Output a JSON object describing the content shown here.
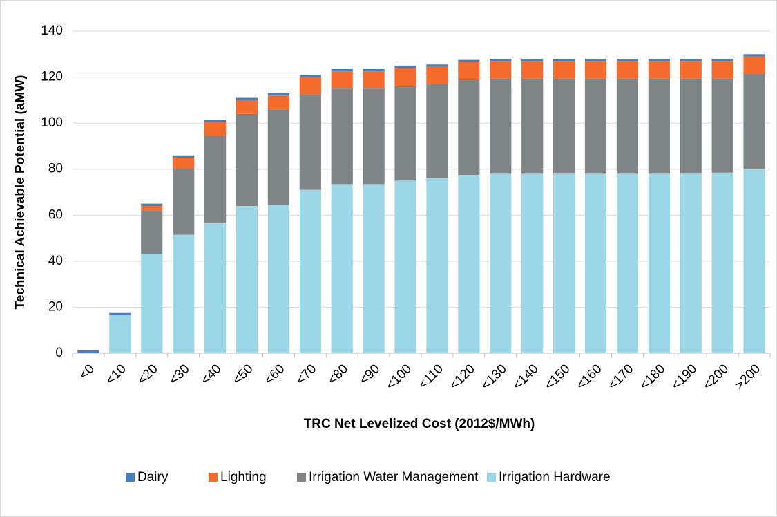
{
  "chart_data": {
    "type": "stacked_bar",
    "y_label": "Technical Achievable Potential (aMW)",
    "x_label": "TRC Net Levelized Cost (2012$/MWh)",
    "categories": [
      "<0",
      "<10",
      "<20",
      "<30",
      "<40",
      "<50",
      "<60",
      "<70",
      "<80",
      "<90",
      "<100",
      "<110",
      "<120",
      "<130",
      "<140",
      "<150",
      "<160",
      "<170",
      "<180",
      "<190",
      "<200",
      ">200"
    ],
    "series": [
      {
        "name": "Dairy",
        "color": "#4a7ebb",
        "values": [
          1.2,
          1,
          1,
          1,
          1,
          1,
          1,
          1,
          1,
          1,
          1,
          1,
          1,
          1,
          1,
          1,
          1,
          1,
          1,
          1,
          1,
          1
        ]
      },
      {
        "name": "Lighting",
        "color": "#f46b2d",
        "values": [
          0,
          0,
          2,
          4.5,
          6,
          6,
          6,
          7.5,
          7.5,
          7.5,
          8,
          7.5,
          7.5,
          7.5,
          7.5,
          7.5,
          7.5,
          7.5,
          7.5,
          7.5,
          7.5,
          7.5
        ]
      },
      {
        "name": "Irrigation Water Management",
        "color": "#7f8487",
        "values": [
          0,
          0,
          19,
          29,
          38,
          40,
          41.5,
          41.5,
          41.5,
          41.5,
          41,
          41,
          41.5,
          41.5,
          41.5,
          41.5,
          41.5,
          41.5,
          41.5,
          41.5,
          41,
          41.5
        ]
      },
      {
        "name": "Irrigation Hardware",
        "color": "#9bd7e6",
        "values": [
          0,
          16.5,
          43,
          51.5,
          56.5,
          64,
          64.5,
          71,
          73.5,
          73.5,
          75,
          76,
          77.5,
          78,
          78,
          78,
          78,
          78,
          78,
          78,
          78.5,
          80
        ]
      }
    ],
    "ylim": [
      0,
      140
    ],
    "yticks": [
      0,
      20,
      40,
      60,
      80,
      100,
      120,
      140
    ],
    "grid": true,
    "legend": "bottom"
  }
}
